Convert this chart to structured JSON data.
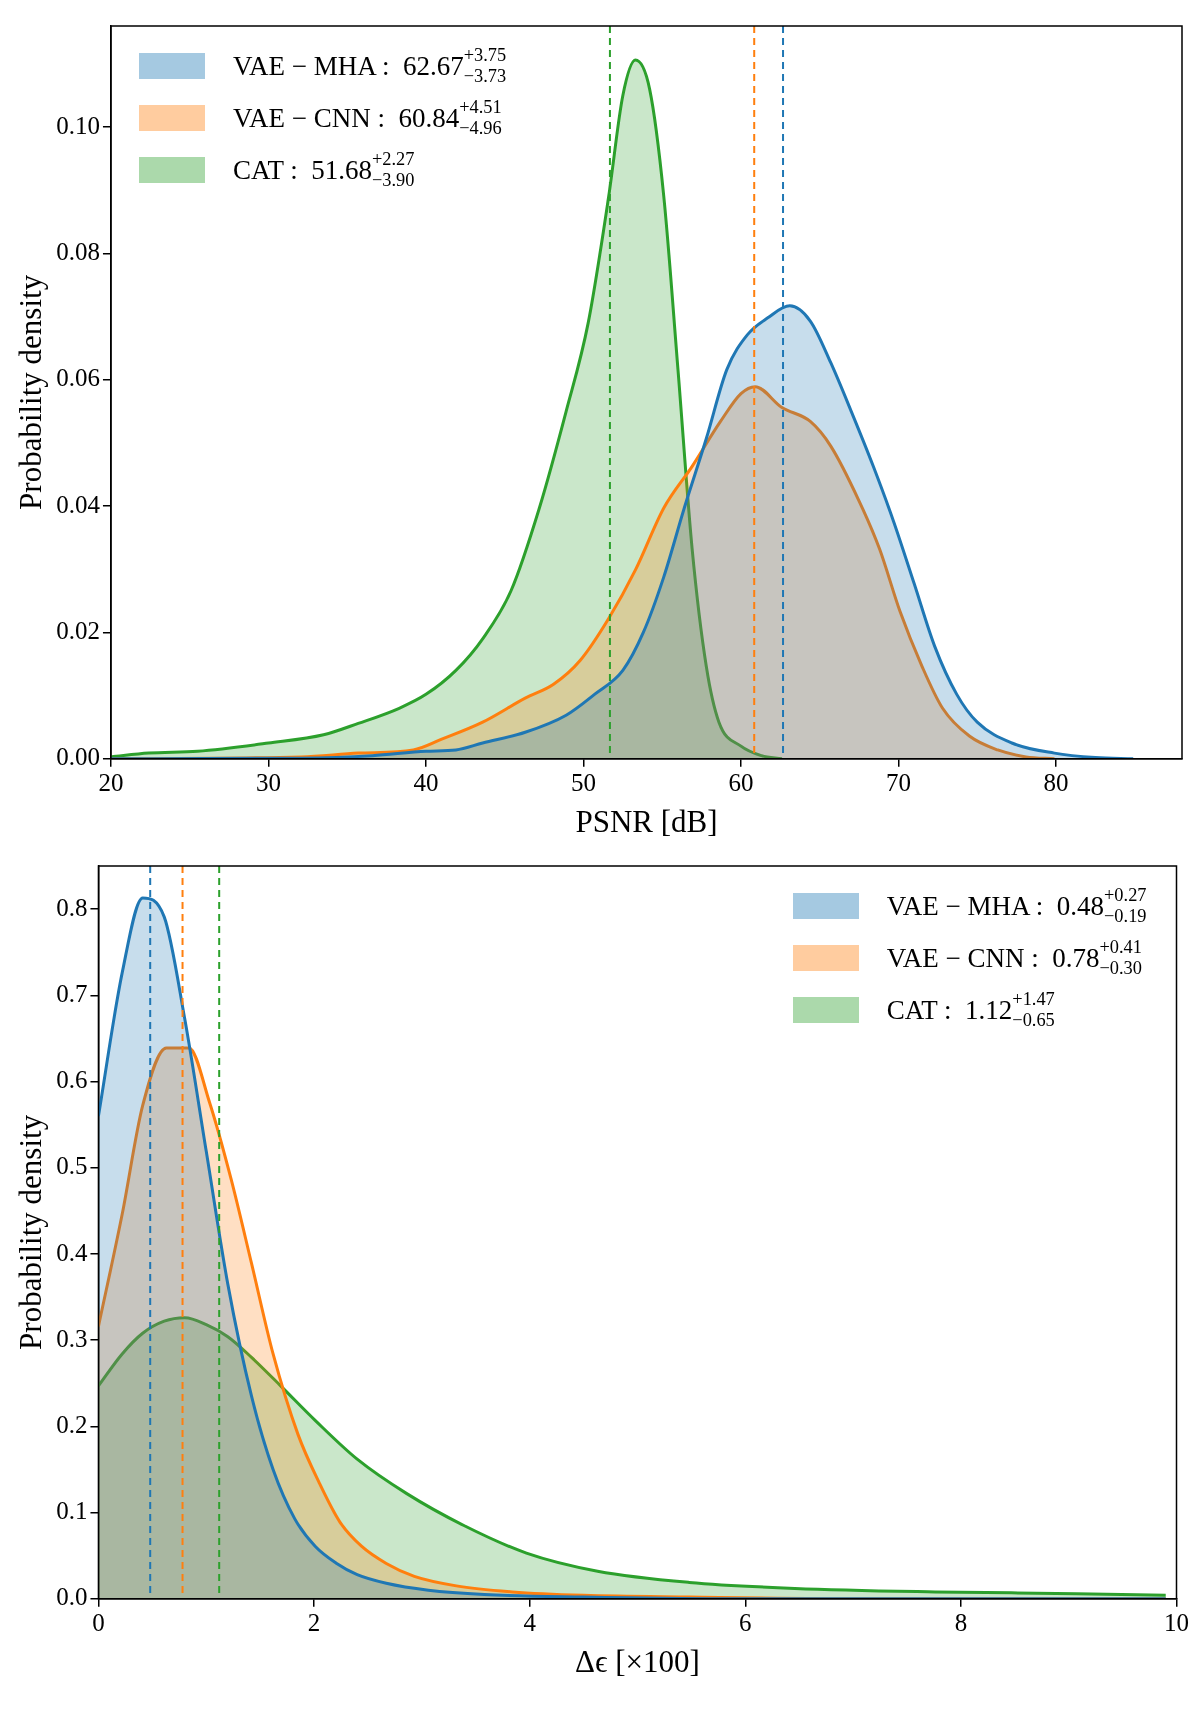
{
  "chart_data": [
    {
      "type": "area",
      "xlabel": "PSNR [dB]",
      "ylabel": "Probability density",
      "xlim": [
        20,
        88
      ],
      "xticks": [
        20,
        30,
        40,
        50,
        60,
        70,
        80
      ],
      "ylim": [
        0,
        0.116
      ],
      "yticks": [
        {
          "value": 0,
          "label": "0.00"
        },
        {
          "value": 0.02,
          "label": "0.02"
        },
        {
          "value": 0.04,
          "label": "0.04"
        },
        {
          "value": 0.06,
          "label": "0.06"
        },
        {
          "value": 0.08,
          "label": "0.08"
        },
        {
          "value": 0.1,
          "label": "0.10"
        }
      ],
      "legend": "top left",
      "series": [
        {
          "name": "VAE − MHA :  62.67$^{+3.75}$$_{−3.73}$",
          "color": "#1f77b4",
          "x": [
            20,
            32.1,
            36.6,
            40,
            41.9,
            43.6,
            46.3,
            48.9,
            50.7,
            52.5,
            53.8,
            55.1,
            56.4,
            57.8,
            59.1,
            60.4,
            61.7,
            63.1,
            64.4,
            65.7,
            67,
            68.4,
            69.7,
            71,
            72.3,
            73.7,
            75,
            77.2,
            79.9,
            82.5,
            84.9
          ],
          "values": [
            0,
            0.0001,
            0.0005,
            0.0012,
            0.0014,
            0.0025,
            0.0042,
            0.0069,
            0.0102,
            0.014,
            0.02,
            0.0288,
            0.0397,
            0.0507,
            0.0616,
            0.0671,
            0.0698,
            0.0717,
            0.0693,
            0.0627,
            0.055,
            0.0463,
            0.0375,
            0.0277,
            0.0178,
            0.0102,
            0.0058,
            0.0025,
            0.0009,
            0.0002,
            0
          ]
        },
        {
          "name": "VAE − CNN :  60.84$^{+4.51}$$_{−4.96}$",
          "color": "#ff7f0e",
          "x": [
            20,
            32.1,
            35.7,
            39.2,
            41,
            43.6,
            46.3,
            48.1,
            49.8,
            51.6,
            53.3,
            55.1,
            56.9,
            58.7,
            60,
            60.9,
            62.6,
            64.4,
            65.7,
            67.5,
            68.8,
            70.1,
            71.5,
            72.8,
            74.5,
            76.3,
            78.1,
            79.9
          ],
          "values": [
            0,
            0.0003,
            0.0009,
            0.0014,
            0.0031,
            0.0058,
            0.0096,
            0.0118,
            0.0156,
            0.0222,
            0.0299,
            0.0397,
            0.0463,
            0.0534,
            0.0578,
            0.0589,
            0.0556,
            0.0534,
            0.0495,
            0.0408,
            0.0332,
            0.0233,
            0.0146,
            0.008,
            0.0036,
            0.0014,
            0.0003,
            0
          ]
        },
        {
          "name": "CAT :  51.68$^{+2.27}$$_{−3.90}$",
          "color": "#2ca02c",
          "x": [
            20,
            22.4,
            25.5,
            30,
            33.5,
            35.7,
            38.3,
            40,
            41.9,
            43.6,
            45.4,
            47.2,
            48.9,
            50.3,
            51.6,
            52.5,
            53.3,
            54.2,
            55.1,
            56,
            56.9,
            57.8,
            58.6,
            60,
            61.3,
            62.6
          ],
          "values": [
            0.0003,
            0.0009,
            0.0012,
            0.0025,
            0.0038,
            0.0056,
            0.008,
            0.0102,
            0.014,
            0.019,
            0.0266,
            0.0397,
            0.055,
            0.069,
            0.089,
            0.105,
            0.1106,
            0.106,
            0.089,
            0.0616,
            0.0332,
            0.0146,
            0.0058,
            0.002,
            0.0005,
            0
          ]
        }
      ],
      "ref_lines": [
        {
          "axis": "x",
          "value": 62.67,
          "color": "#1f77b4",
          "line_style": "dashed"
        },
        {
          "axis": "x",
          "value": 60.84,
          "color": "#ff7f0e",
          "line_style": "dashed"
        },
        {
          "axis": "x",
          "value": 51.68,
          "color": "#2ca02c",
          "line_style": "dashed"
        }
      ]
    },
    {
      "type": "area",
      "xlabel": "Δϵ [×100]",
      "ylabel": "Probability density",
      "xlim": [
        0,
        10
      ],
      "xticks": [
        0,
        2,
        4,
        6,
        8,
        10
      ],
      "ylim": [
        0,
        0.85
      ],
      "yticks": [
        {
          "value": 0,
          "label": "0.0"
        },
        {
          "value": 0.1,
          "label": "0.1"
        },
        {
          "value": 0.2,
          "label": "0.2"
        },
        {
          "value": 0.3,
          "label": "0.3"
        },
        {
          "value": 0.4,
          "label": "0.4"
        },
        {
          "value": 0.5,
          "label": "0.5"
        },
        {
          "value": 0.6,
          "label": "0.6"
        },
        {
          "value": 0.7,
          "label": "0.7"
        },
        {
          "value": 0.8,
          "label": "0.8"
        }
      ],
      "legend": "top right",
      "series": [
        {
          "name": "VAE − MHA :  0.48$^{+0.27}$$_{−0.19}$",
          "color": "#1f77b4",
          "x": [
            0,
            0.22,
            0.41,
            0.61,
            0.8,
            1.0,
            1.2,
            1.42,
            1.62,
            1.82,
            2.01,
            2.21,
            2.4,
            2.67,
            3.06,
            3.58,
            4.5,
            5.8,
            9.9
          ],
          "values": [
            0.56,
            0.726,
            0.813,
            0.791,
            0.673,
            0.519,
            0.365,
            0.235,
            0.15,
            0.093,
            0.061,
            0.041,
            0.028,
            0.018,
            0.01,
            0.005,
            0.002,
            0,
            0
          ]
        },
        {
          "name": "VAE − CNN :  0.78$^{+0.41}$$_{−0.30}$",
          "color": "#ff7f0e",
          "x": [
            0,
            0.22,
            0.41,
            0.63,
            0.84,
            1.03,
            1.23,
            1.42,
            1.62,
            1.85,
            2.05,
            2.24,
            2.44,
            2.67,
            2.93,
            3.32,
            3.84,
            4.5,
            5.48,
            7.1,
            9.9
          ],
          "values": [
            0.316,
            0.446,
            0.572,
            0.639,
            0.639,
            0.576,
            0.487,
            0.389,
            0.284,
            0.191,
            0.134,
            0.089,
            0.061,
            0.041,
            0.026,
            0.015,
            0.008,
            0.004,
            0.002,
            0,
            0
          ]
        },
        {
          "name": "CAT :  1.12$^{+1.47}$$_{−0.65}$",
          "color": "#2ca02c",
          "x": [
            0,
            0.22,
            0.41,
            0.61,
            0.8,
            1.0,
            1.2,
            1.42,
            1.69,
            2.01,
            2.4,
            2.86,
            3.39,
            3.97,
            4.63,
            5.48,
            6.46,
            7.76,
            9.07,
            9.9
          ],
          "values": [
            0.247,
            0.284,
            0.308,
            0.322,
            0.326,
            0.318,
            0.304,
            0.28,
            0.247,
            0.207,
            0.162,
            0.122,
            0.085,
            0.053,
            0.032,
            0.019,
            0.012,
            0.008,
            0.006,
            0.004
          ]
        }
      ],
      "ref_lines": [
        {
          "axis": "x",
          "value": 0.48,
          "color": "#1f77b4",
          "line_style": "dashed"
        },
        {
          "axis": "x",
          "value": 0.78,
          "color": "#ff7f0e",
          "line_style": "dashed"
        },
        {
          "axis": "x",
          "value": 1.12,
          "color": "#2ca02c",
          "line_style": "dashed"
        }
      ]
    }
  ]
}
